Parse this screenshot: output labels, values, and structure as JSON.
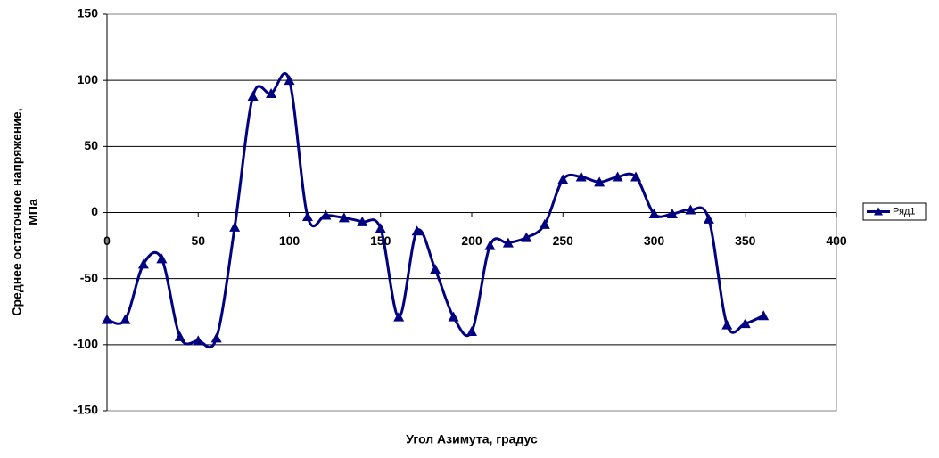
{
  "chart_data": {
    "type": "line",
    "xlabel": "Угол Азимута, градус",
    "ylabel": [
      "Среднее остаточное напряжение,",
      "МПа"
    ],
    "x": [
      0,
      10,
      20,
      30,
      40,
      50,
      60,
      70,
      80,
      90,
      100,
      110,
      120,
      130,
      140,
      150,
      160,
      170,
      180,
      190,
      200,
      210,
      220,
      230,
      240,
      250,
      260,
      270,
      280,
      290,
      300,
      310,
      320,
      330,
      340,
      350,
      360
    ],
    "series": [
      {
        "name": "Ряд1",
        "color": "#000080",
        "values": [
          -81,
          -81,
          -39,
          -35,
          -94,
          -97,
          -95,
          -11,
          88,
          90,
          100,
          -3,
          -2,
          -4,
          -7,
          -12,
          -79,
          -14,
          -43,
          -79,
          -90,
          -25,
          -23,
          -19,
          -9,
          25,
          27,
          23,
          27,
          27,
          -1,
          -1,
          2,
          -5,
          -85,
          -84,
          -78
        ]
      }
    ],
    "xlim": [
      0,
      400
    ],
    "xticks": [
      0,
      50,
      100,
      150,
      200,
      250,
      300,
      350,
      400
    ],
    "ylim": [
      -150,
      150
    ],
    "yticks": [
      -150,
      -100,
      -50,
      0,
      50,
      100,
      150
    ],
    "grid": true,
    "smooth": true,
    "legend": "right"
  }
}
